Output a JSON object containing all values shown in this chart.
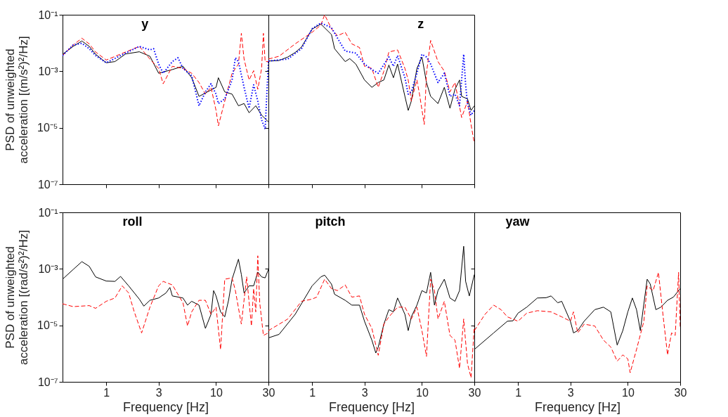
{
  "chart_data": [
    {
      "type": "line",
      "title": "y",
      "ylabel": "PSD of unweighted acceleration [(m/s²)²/Hz]",
      "log": "xy",
      "tick_labels": "y",
      "xlim": [
        0.4,
        30
      ],
      "ylim": [
        1e-07,
        0.1
      ],
      "xticks": [
        {
          "value": 1,
          "label": null
        },
        {
          "value": 3,
          "label": null
        },
        {
          "value": 10,
          "label": null
        },
        {
          "value": 30,
          "label": null
        }
      ],
      "yticks": [
        {
          "value": 1e-07,
          "label": "10⁻⁷"
        },
        {
          "value": 1e-05,
          "label": "10⁻⁵"
        },
        {
          "value": 0.001,
          "label": "10⁻³"
        },
        {
          "value": 0.1,
          "label": "10⁻¹"
        }
      ],
      "series": [
        {
          "color": "#000000",
          "line_style": "solid",
          "x": [
            0.4,
            0.5,
            0.6,
            0.7,
            0.8,
            1,
            1.2,
            1.5,
            2,
            2.5,
            3,
            4,
            5,
            6,
            7,
            8,
            10,
            10.5,
            12,
            14,
            16,
            18,
            20,
            23,
            26,
            30
          ],
          "values": [
            0.004,
            0.0076,
            0.0118,
            0.0076,
            0.004,
            0.002,
            0.0022,
            0.0041,
            0.0049,
            0.0034,
            0.00085,
            0.00115,
            0.0015,
            0.00059,
            0.000129,
            0.00017,
            0.00027,
            0.00059,
            0.000186,
            0.000155,
            6e-05,
            7.2e-05,
            3.4e-05,
            6e-05,
            2.8e-05,
            1.6e-05
          ]
        },
        {
          "color": "#ff0000",
          "line_style": "dashed",
          "x": [
            0.4,
            0.5,
            0.6,
            0.7,
            0.8,
            1,
            1.5,
            2,
            2.5,
            3,
            3.3,
            4,
            5,
            6,
            7,
            8,
            9,
            10,
            10.5,
            12,
            14,
            16,
            17,
            18,
            20,
            22,
            24,
            26,
            27,
            28,
            30
          ],
          "values": [
            0.0036,
            0.0085,
            0.0148,
            0.0093,
            0.0048,
            0.0025,
            0.0048,
            0.0076,
            0.0027,
            0.00126,
            0.00036,
            0.0015,
            0.00126,
            0.00085,
            0.0004,
            0.000155,
            0.00027,
            4.1e-05,
            1.17e-05,
            8.7e-05,
            0.00085,
            0.0018,
            0.022,
            0.0027,
            0.00049,
            0.00105,
            0.00023,
            0.00126,
            0.022,
            0.0022,
            0.0022
          ]
        },
        {
          "color": "#0000ff",
          "line_style": "dotted",
          "x": [
            0.4,
            0.5,
            0.6,
            0.7,
            0.8,
            1,
            1.5,
            2,
            2.5,
            2.7,
            3,
            3.3,
            4,
            4.5,
            5,
            6,
            7,
            8,
            9,
            10,
            10.5,
            12,
            14,
            15,
            16,
            18,
            20,
            22,
            24,
            26,
            28,
            30
          ],
          "values": [
            0.0036,
            0.0085,
            0.0098,
            0.0063,
            0.0036,
            0.002,
            0.0044,
            0.0076,
            0.0057,
            0.0063,
            0.0018,
            0.00085,
            0.0022,
            0.003,
            0.00126,
            0.0007,
            6e-05,
            0.000186,
            0.00036,
            0.000155,
            7.2e-05,
            0.000105,
            0.00049,
            0.003,
            0.0022,
            0.00027,
            4.9e-05,
            0.00033,
            8.7e-05,
            1.9e-05,
            8.9e-06,
            0.0022
          ]
        }
      ]
    },
    {
      "type": "line",
      "title": "z",
      "log": "xy",
      "tick_labels": false,
      "xlim": [
        0.4,
        30
      ],
      "ylim": [
        1e-07,
        0.1
      ],
      "xticks": [
        {
          "value": 1,
          "label": null
        },
        {
          "value": 3,
          "label": null
        },
        {
          "value": 10,
          "label": null
        },
        {
          "value": 30,
          "label": null
        }
      ],
      "yticks": [
        {
          "value": 1e-07,
          "label": null
        },
        {
          "value": 1e-05,
          "label": null
        },
        {
          "value": 0.001,
          "label": null
        },
        {
          "value": 0.1,
          "label": null
        }
      ],
      "series": [
        {
          "color": "#000000",
          "line_style": "solid",
          "x": [
            0.4,
            0.5,
            0.6,
            0.7,
            0.8,
            1,
            1.2,
            1.5,
            1.6,
            2,
            2.2,
            2.5,
            3,
            3.5,
            4,
            4.5,
            5,
            5.5,
            6,
            7,
            7.5,
            8,
            9,
            10,
            11,
            12,
            14,
            16,
            18,
            20,
            22,
            23,
            26,
            28,
            30
          ],
          "values": [
            0.0023,
            0.0024,
            0.0032,
            0.0046,
            0.0072,
            0.031,
            0.047,
            0.02,
            0.0063,
            0.0022,
            0.0028,
            0.0018,
            0.00049,
            0.00027,
            0.0004,
            0.00049,
            0.00166,
            0.00059,
            0.0018,
            0.000129,
            4.1e-05,
            8.7e-05,
            0.00126,
            0.0032,
            0.0004,
            0.000129,
            7.2e-05,
            0.00027,
            4.9e-05,
            0.00023,
            0.00049,
            0.000129,
            0.000105,
            4.1e-05,
            6e-05
          ]
        },
        {
          "color": "#ff0000",
          "line_style": "dashed",
          "x": [
            0.4,
            0.5,
            0.7,
            1,
            1.2,
            1.3,
            1.5,
            1.7,
            2,
            2.3,
            2.7,
            3,
            3.5,
            4,
            4.5,
            5,
            6,
            7,
            7.5,
            8,
            9,
            9.5,
            10.5,
            11,
            12,
            14,
            16,
            18,
            20,
            23,
            26,
            28,
            30
          ],
          "values": [
            0.0027,
            0.0034,
            0.0093,
            0.024,
            0.043,
            0.1,
            0.032,
            0.018,
            0.024,
            0.0093,
            0.0069,
            0.0015,
            0.00126,
            0.00027,
            0.001,
            0.0048,
            0.0057,
            0.00126,
            0.00049,
            8.7e-05,
            0.00049,
            0.000155,
            1.3e-05,
            0.00085,
            0.0123,
            0.0022,
            0.001,
            0.000186,
            0.0004,
            2.3e-05,
            8.7e-05,
            1.3e-05,
            2.8e-06
          ]
        },
        {
          "color": "#0000ff",
          "line_style": "dotted",
          "x": [
            0.4,
            0.6,
            0.8,
            1,
            1.2,
            1.5,
            1.7,
            2,
            2.5,
            3,
            3.5,
            4,
            5,
            5.5,
            6,
            7,
            7.5,
            8,
            9,
            10,
            11,
            12,
            14,
            16,
            18,
            20,
            22,
            24,
            25,
            26,
            28,
            30
          ],
          "values": [
            0.0023,
            0.0027,
            0.0063,
            0.032,
            0.051,
            0.035,
            0.015,
            0.0052,
            0.0044,
            0.0018,
            0.00115,
            0.00085,
            0.0032,
            0.0015,
            0.0036,
            0.00059,
            0.000155,
            0.000186,
            0.00085,
            0.004,
            0.0032,
            0.0018,
            0.0004,
            0.00085,
            0.000129,
            0.000155,
            6e-05,
            0.004,
            0.00033,
            7.2e-05,
            2.8e-05,
            4.1e-05
          ]
        }
      ]
    },
    {
      "type": "line",
      "title": "roll",
      "xlabel": "Frequency [Hz]",
      "ylabel": "PSD of unweighted acceleration [(rad/s²)²/Hz]",
      "log": "xy",
      "xlim": [
        0.4,
        30
      ],
      "ylim": [
        1e-07,
        0.1
      ],
      "xticks": [
        1,
        3,
        10,
        30
      ],
      "yticks": [
        {
          "value": 1e-07,
          "label": "10⁻⁷"
        },
        {
          "value": 1e-05,
          "label": "10⁻⁵"
        },
        {
          "value": 0.001,
          "label": "10⁻³"
        },
        {
          "value": 0.1,
          "label": "10⁻¹"
        }
      ],
      "series": [
        {
          "color": "#000000",
          "line_style": "solid",
          "x": [
            0.4,
            0.5,
            0.6,
            0.7,
            0.8,
            1,
            1.2,
            1.35,
            1.6,
            2,
            2.2,
            2.5,
            3,
            3.5,
            3.8,
            4,
            5,
            5.5,
            6,
            7,
            8,
            9,
            9.5,
            10,
            11,
            12,
            13,
            14,
            16,
            17,
            18,
            20,
            22,
            24,
            26,
            28,
            30
          ],
          "values": [
            0.00043,
            0.00095,
            0.0018,
            0.00123,
            0.00052,
            0.00037,
            0.00036,
            0.00054,
            0.00025,
            8.5e-05,
            4.8e-05,
            7.7e-05,
            9.3e-05,
            0.00014,
            0.00022,
            0.00011,
            9.3e-05,
            5.2e-05,
            7.1e-05,
            5.2e-05,
            7.8e-06,
            2.45e-05,
            0.00017,
            0.00011,
            3e-05,
            2e-05,
            7.7e-05,
            0.00043,
            0.0022,
            0.00063,
            0.00014,
            0.00025,
            0.00025,
            0.00077,
            0.00052,
            0.00048,
            0.00095
          ]
        },
        {
          "color": "#ff0000",
          "line_style": "dashed",
          "x": [
            0.4,
            0.5,
            0.7,
            0.8,
            1,
            1.2,
            1.4,
            1.6,
            1.8,
            2.1,
            2.5,
            3,
            3.3,
            4,
            5,
            5.5,
            6,
            7,
            8,
            9,
            10,
            11,
            12,
            14,
            15,
            17,
            19,
            21,
            22,
            23,
            24,
            25,
            27,
            30
          ],
          "values": [
            5.8e-05,
            4.6e-05,
            5e-05,
            4e-05,
            7.1e-05,
            9.3e-05,
            0.00025,
            0.00014,
            3e-05,
            5.4e-06,
            4.4e-05,
            0.00025,
            0.00036,
            0.00027,
            6.3e-05,
            9.5e-06,
            3e-05,
            7.7e-05,
            7.7e-05,
            2.45e-05,
            4.4e-05,
            1.4e-06,
            0.00043,
            0.00048,
            0.00017,
            1.1e-05,
            0.00052,
            9.5e-06,
            0.0002,
            3e-05,
            0.0029,
            6.3e-05,
            4.4e-06,
            5.4e-06
          ]
        }
      ]
    },
    {
      "type": "line",
      "title": "pitch",
      "xlabel": "Frequency [Hz]",
      "log": "xy",
      "tick_labels": "x",
      "xlim": [
        0.4,
        30
      ],
      "ylim": [
        1e-07,
        0.1
      ],
      "xticks": [
        1,
        3,
        10,
        30
      ],
      "yticks": [
        {
          "value": 1e-07,
          "label": null
        },
        {
          "value": 1e-05,
          "label": null
        },
        {
          "value": 0.001,
          "label": null
        },
        {
          "value": 0.1,
          "label": null
        }
      ],
      "series": [
        {
          "color": "#000000",
          "line_style": "solid",
          "x": [
            0.4,
            0.5,
            0.7,
            1,
            1.2,
            1.3,
            1.5,
            1.6,
            2,
            2.3,
            2.7,
            3,
            3.5,
            3.8,
            4,
            4.5,
            5,
            5.5,
            6,
            7,
            7.5,
            8,
            9,
            10,
            11,
            12,
            13,
            14,
            16,
            18,
            20,
            22,
            24,
            25,
            27,
            30
          ],
          "values": [
            3.6e-06,
            4.8e-06,
            2.45e-05,
            0.00025,
            0.00052,
            0.0006,
            0.00029,
            0.000126,
            7.7e-05,
            5.2e-05,
            5.2e-05,
            1.39e-05,
            3e-06,
            1.05e-06,
            1.7e-06,
            1.1e-05,
            3.6e-05,
            3e-05,
            9.3e-05,
            2.45e-05,
            6.5e-06,
            2e-05,
            5.2e-05,
            0.00017,
            0.00014,
            0.00075,
            5.2e-05,
            0.00017,
            0.00043,
            9.3e-05,
            7.1e-05,
            0.00017,
            0.0063,
            0.00036,
            0.00011,
            0.00063
          ]
        },
        {
          "color": "#ff0000",
          "line_style": "dashed",
          "x": [
            0.4,
            0.6,
            0.8,
            1,
            1.1,
            1.3,
            1.5,
            1.7,
            2,
            2.3,
            2.7,
            3,
            3.5,
            4,
            4.5,
            5,
            6,
            7,
            8,
            9,
            10,
            11,
            12,
            13,
            14,
            16,
            18,
            20,
            22,
            24,
            26,
            28,
            30
          ],
          "values": [
            6.5e-06,
            1.68e-05,
            7.1e-05,
            8.5e-05,
            0.0001,
            0.00043,
            0.0002,
            0.00017,
            0.00027,
            0.0001,
            0.00011,
            2.45e-05,
            7.8e-06,
            8.7e-07,
            1.1e-05,
            2e-05,
            4.4e-05,
            4.4e-05,
            1.68e-05,
            4.4e-05,
            6.5e-06,
            8e-07,
            0.00043,
            0.00017,
            1.68e-05,
            7.1e-05,
            4.4e-06,
            3e-06,
            3e-07,
            1.68e-05,
            4.4e-07,
            1.4e-07,
            9.6e-06
          ]
        }
      ]
    },
    {
      "type": "line",
      "title": "yaw",
      "xlabel": "Frequency [Hz]",
      "log": "xy",
      "tick_labels": "x",
      "xlim": [
        0.4,
        30
      ],
      "ylim": [
        1e-07,
        0.1
      ],
      "xticks": [
        1,
        3,
        10,
        30
      ],
      "yticks": [
        {
          "value": 1e-07,
          "label": null
        },
        {
          "value": 1e-05,
          "label": null
        },
        {
          "value": 0.001,
          "label": null
        },
        {
          "value": 0.1,
          "label": null
        }
      ],
      "series": [
        {
          "color": "#000000",
          "line_style": "solid",
          "x": [
            0.4,
            0.6,
            0.8,
            0.9,
            1,
            1.2,
            1.5,
            1.8,
            2,
            2.3,
            2.5,
            3,
            3.2,
            3.5,
            4,
            5,
            6,
            7,
            8,
            9,
            10,
            11,
            12,
            13,
            15,
            16,
            18,
            20,
            23,
            26,
            30
          ],
          "values": [
            1.4e-06,
            5.4e-06,
            1.4e-05,
            1.45e-05,
            2.7e-05,
            4.4e-05,
            9.3e-05,
            9.5e-05,
            0.00011,
            6.3e-05,
            7.1e-05,
            1.39e-05,
            5.4e-06,
            6.5e-06,
            1.4e-05,
            3.6e-05,
            4.4e-05,
            3e-05,
            2e-06,
            6.5e-06,
            3e-05,
            9.3e-05,
            3.6e-05,
            6.5e-06,
            0.00043,
            0.00029,
            3.6e-05,
            4.4e-05,
            7.7e-05,
            0.0001,
            0.0002
          ]
        },
        {
          "color": "#ff0000",
          "line_style": "dashed",
          "x": [
            0.4,
            0.5,
            0.6,
            0.7,
            0.8,
            1,
            1.2,
            1.5,
            2,
            2.5,
            3,
            3.2,
            3.5,
            4,
            5,
            6,
            7,
            8,
            9,
            10,
            10.5,
            12,
            14,
            15,
            17,
            19,
            21,
            23,
            25,
            27,
            29,
            30
          ],
          "values": [
            6.5e-06,
            2.45e-05,
            5.2e-05,
            3.6e-05,
            2e-05,
            1.4e-05,
            2.7e-05,
            3.3e-05,
            3e-05,
            2e-05,
            1.4e-05,
            3e-05,
            5.4e-06,
            1.1e-05,
            9.5e-06,
            3e-06,
            1.7e-06,
            5.4e-07,
            9e-07,
            6.5e-07,
            2.1e-07,
            1.4e-06,
            1.4e-05,
            0.00025,
            0.00017,
            0.00075,
            2e-05,
            9e-07,
            5.4e-06,
            4.4e-06,
            0.00075,
            7.8e-06
          ]
        }
      ]
    }
  ]
}
